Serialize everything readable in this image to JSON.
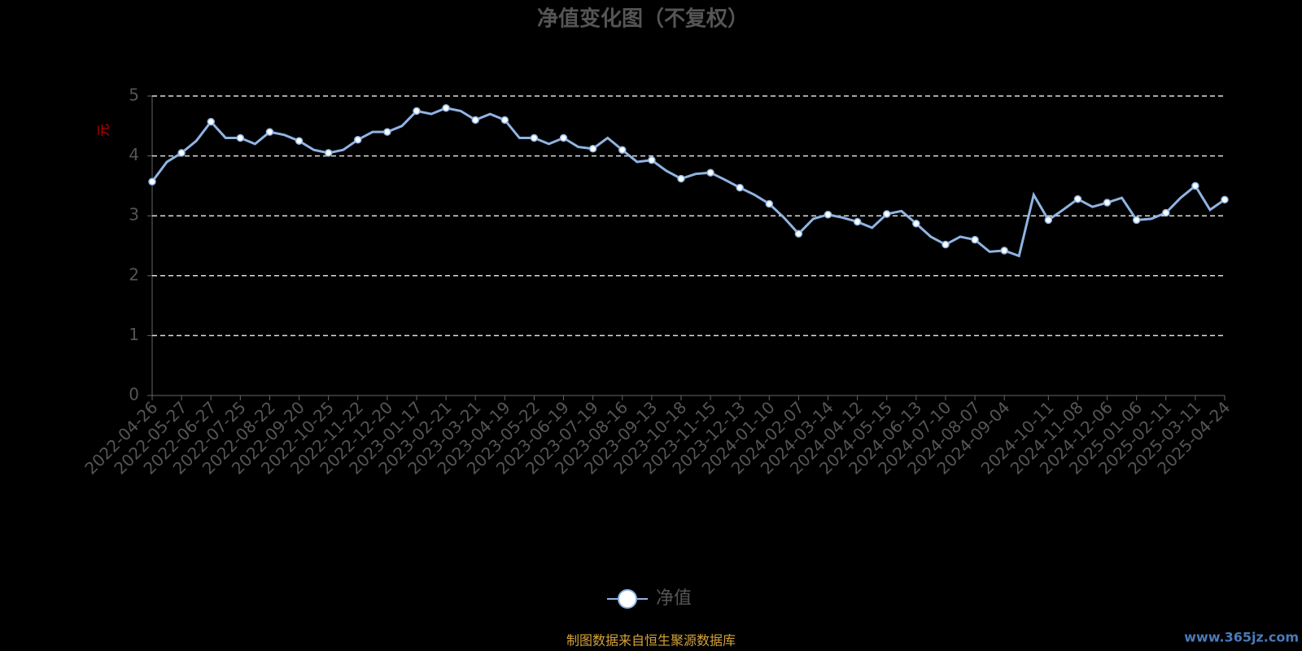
{
  "chart_data": {
    "type": "line",
    "title": "净值变化图（不复权）",
    "y_label": "元",
    "categories": [
      "2022-04-26",
      null,
      "2022-05-27",
      null,
      "2022-06-27",
      null,
      "2022-07-25",
      null,
      "2022-08-22",
      null,
      "2022-09-20",
      null,
      "2022-10-25",
      null,
      "2022-11-22",
      null,
      "2022-12-20",
      null,
      "2023-01-17",
      null,
      "2023-02-21",
      null,
      "2023-03-21",
      null,
      "2023-04-19",
      null,
      "2023-05-22",
      null,
      "2023-06-19",
      null,
      "2023-07-19",
      null,
      "2023-08-16",
      null,
      "2023-09-13",
      null,
      "2023-10-18",
      null,
      "2023-11-15",
      null,
      "2023-12-13",
      null,
      "2024-01-10",
      null,
      "2024-02-07",
      null,
      "2024-03-14",
      null,
      "2024-04-12",
      null,
      "2024-05-15",
      null,
      "2024-06-13",
      null,
      "2024-07-10",
      null,
      "2024-08-07",
      null,
      "2024-09-04",
      null,
      null,
      "2024-10-11",
      null,
      "2024-11-08",
      null,
      "2024-12-06",
      null,
      "2025-01-06",
      null,
      "2025-02-11",
      null,
      "2025-03-11",
      null,
      "2025-04-24"
    ],
    "series": [
      {
        "name": "净值",
        "color": "#8fb4e3",
        "values": [
          3.57,
          3.9,
          4.05,
          4.25,
          4.57,
          4.3,
          4.3,
          4.2,
          4.4,
          4.35,
          4.25,
          4.1,
          4.05,
          4.1,
          4.27,
          4.4,
          4.4,
          4.5,
          4.75,
          4.7,
          4.8,
          4.75,
          4.6,
          4.7,
          4.6,
          4.3,
          4.3,
          4.2,
          4.3,
          4.15,
          4.12,
          4.3,
          4.1,
          3.9,
          3.93,
          3.75,
          3.62,
          3.7,
          3.72,
          3.6,
          3.47,
          3.35,
          3.2,
          2.97,
          2.7,
          2.95,
          3.02,
          2.97,
          2.9,
          2.8,
          3.03,
          3.08,
          2.87,
          2.65,
          2.52,
          2.65,
          2.6,
          2.4,
          2.42,
          2.33,
          3.35,
          2.93,
          3.1,
          3.28,
          3.15,
          3.22,
          3.3,
          2.93,
          2.95,
          3.05,
          3.3,
          3.5,
          3.1,
          3.27
        ]
      }
    ],
    "ylim": [
      0,
      5
    ],
    "yticks": [
      0,
      1,
      2,
      3,
      4,
      5
    ],
    "grid": true,
    "source": "制图数据来自恒生聚源数据库",
    "watermark": "www.365jz.com"
  }
}
